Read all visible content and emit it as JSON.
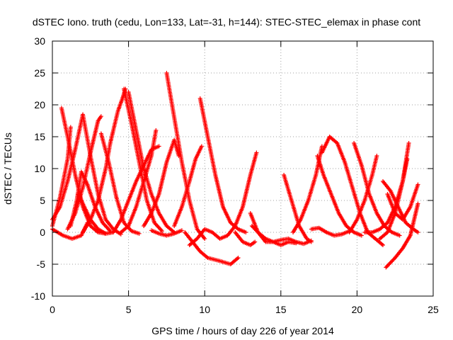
{
  "chart_data": {
    "type": "scatter",
    "title": "dSTEC Iono. truth (cedu, Lon=133, Lat=-31, h=144): STEC-STEC_elemax in phase cont",
    "xlabel": "GPS time / hours of day 226 of year 2014",
    "ylabel": "dSTEC  / TECUs",
    "xlim": [
      0,
      25
    ],
    "ylim": [
      -10,
      30
    ],
    "xticks": [
      0,
      5,
      10,
      15,
      20,
      25
    ],
    "yticks": [
      -10,
      -5,
      0,
      5,
      10,
      15,
      20,
      25,
      30
    ],
    "grid": true,
    "marker": "+",
    "color": "#ff0000",
    "series": [
      {
        "points": [
          [
            0.0,
            2
          ],
          [
            0.5,
            4
          ],
          [
            1.0,
            8
          ],
          [
            1.5,
            13
          ],
          [
            2.0,
            18.5
          ],
          [
            2.5,
            12
          ],
          [
            3.0,
            6
          ],
          [
            3.5,
            2
          ],
          [
            4.0,
            0.5
          ],
          [
            4.5,
            -0.3
          ]
        ]
      },
      {
        "points": [
          [
            0.6,
            19.5
          ],
          [
            1.0,
            15
          ],
          [
            1.5,
            9
          ],
          [
            2.0,
            4
          ],
          [
            2.5,
            1
          ],
          [
            3.0,
            0
          ],
          [
            3.5,
            -0.2
          ]
        ]
      },
      {
        "points": [
          [
            0.0,
            1
          ],
          [
            0.5,
            5.5
          ],
          [
            1.0,
            11.5
          ],
          [
            1.2,
            16.5
          ]
        ]
      },
      {
        "points": [
          [
            1.0,
            0.5
          ],
          [
            1.5,
            3
          ],
          [
            2.0,
            7
          ],
          [
            2.5,
            12.5
          ],
          [
            3.0,
            17.5
          ],
          [
            3.2,
            18.2
          ]
        ]
      },
      {
        "points": [
          [
            1.2,
            1
          ],
          [
            1.6,
            5
          ],
          [
            1.9,
            9.5
          ],
          [
            2.3,
            7.5
          ],
          [
            2.8,
            4
          ],
          [
            3.3,
            1.5
          ],
          [
            3.8,
            0.2
          ]
        ]
      },
      {
        "points": [
          [
            0.0,
            0.5
          ],
          [
            0.7,
            -0.5
          ],
          [
            1.3,
            -1
          ],
          [
            1.9,
            -0.5
          ],
          [
            2.3,
            1.5
          ]
        ]
      },
      {
        "points": [
          [
            1.7,
            6
          ],
          [
            2.5,
            2
          ],
          [
            3.0,
            0.5
          ],
          [
            3.5,
            -0.2
          ],
          [
            4.0,
            0
          ]
        ]
      },
      {
        "points": [
          [
            2.0,
            0
          ],
          [
            2.5,
            2
          ],
          [
            3.0,
            5
          ],
          [
            3.5,
            10
          ],
          [
            3.8,
            14
          ],
          [
            4.0,
            16
          ],
          [
            4.3,
            19
          ],
          [
            4.6,
            21
          ],
          [
            4.8,
            22.5
          ]
        ]
      },
      {
        "points": [
          [
            3.2,
            15.5
          ],
          [
            3.7,
            11
          ],
          [
            4.2,
            5.5
          ],
          [
            4.7,
            1.5
          ],
          [
            5.2,
            0.2
          ],
          [
            5.7,
            -0.2
          ]
        ]
      },
      {
        "points": [
          [
            4.0,
            0
          ],
          [
            4.5,
            2
          ],
          [
            5.0,
            5
          ],
          [
            5.5,
            8
          ],
          [
            6.0,
            10.5
          ],
          [
            6.5,
            13
          ],
          [
            7.0,
            13.5
          ]
        ]
      },
      {
        "points": [
          [
            4.7,
            22.5
          ],
          [
            5.2,
            17
          ],
          [
            5.7,
            11
          ],
          [
            6.2,
            5
          ],
          [
            6.7,
            1.5
          ],
          [
            7.2,
            0.2
          ]
        ]
      },
      {
        "points": [
          [
            5.0,
            22
          ],
          [
            5.5,
            16
          ],
          [
            6.0,
            10
          ],
          [
            6.5,
            6
          ],
          [
            7.0,
            3
          ],
          [
            7.5,
            1
          ],
          [
            8.0,
            0
          ]
        ]
      },
      {
        "points": [
          [
            4.5,
            0
          ],
          [
            5.0,
            1
          ],
          [
            5.5,
            4
          ],
          [
            6.0,
            8
          ],
          [
            6.5,
            12
          ],
          [
            6.8,
            16
          ]
        ]
      },
      {
        "points": [
          [
            6.0,
            1
          ],
          [
            6.5,
            3
          ],
          [
            7.0,
            6
          ],
          [
            7.5,
            11
          ],
          [
            8.0,
            14.5
          ],
          [
            8.3,
            12
          ]
        ]
      },
      {
        "points": [
          [
            7.5,
            25
          ],
          [
            8.0,
            18
          ],
          [
            8.5,
            11
          ],
          [
            9.0,
            5
          ],
          [
            9.5,
            0.5
          ],
          [
            10.0,
            -1
          ]
        ]
      },
      {
        "points": [
          [
            6.5,
            0.3
          ],
          [
            7.0,
            -0.2
          ],
          [
            7.5,
            -0.5
          ],
          [
            8.0,
            -0.2
          ],
          [
            8.5,
            0.3
          ]
        ]
      },
      {
        "points": [
          [
            8.7,
            0
          ],
          [
            9.2,
            -1.5
          ],
          [
            9.7,
            -3
          ],
          [
            10.2,
            -4
          ],
          [
            11.0,
            -4.5
          ],
          [
            11.7,
            -5
          ],
          [
            12.2,
            -4
          ]
        ]
      },
      {
        "points": [
          [
            8.0,
            1
          ],
          [
            8.5,
            4
          ],
          [
            9.0,
            8
          ],
          [
            9.4,
            11.5
          ],
          [
            9.8,
            13.5
          ]
        ]
      },
      {
        "points": [
          [
            9.7,
            21
          ],
          [
            10.2,
            15
          ],
          [
            10.7,
            9
          ],
          [
            11.2,
            4
          ],
          [
            11.7,
            1.5
          ],
          [
            12.2,
            0.5
          ],
          [
            12.7,
            0
          ]
        ]
      },
      {
        "points": [
          [
            9.0,
            -2
          ],
          [
            9.5,
            -1
          ],
          [
            10.0,
            0.5
          ],
          [
            10.5,
            0
          ],
          [
            11.0,
            -1
          ],
          [
            11.5,
            -0.5
          ],
          [
            12.0,
            1
          ],
          [
            12.5,
            4
          ],
          [
            13.0,
            9
          ],
          [
            13.4,
            12.5
          ]
        ]
      },
      {
        "points": [
          [
            12.0,
            0
          ],
          [
            12.5,
            -1.5
          ],
          [
            13.0,
            -2
          ],
          [
            13.3,
            -1.5
          ]
        ]
      },
      {
        "points": [
          [
            13.0,
            3
          ],
          [
            13.5,
            0
          ],
          [
            14.0,
            -1.5
          ],
          [
            14.5,
            -1.5
          ],
          [
            15.0,
            -1.2
          ],
          [
            15.5,
            -1
          ],
          [
            16.0,
            -1.5
          ],
          [
            16.5,
            -1.8
          ],
          [
            17.0,
            -1.3
          ]
        ]
      },
      {
        "points": [
          [
            13.1,
            1
          ],
          [
            13.5,
            0
          ],
          [
            14.0,
            -1
          ],
          [
            14.5,
            -1.5
          ],
          [
            15.0,
            -2
          ],
          [
            15.5,
            -1.5
          ],
          [
            16.0,
            -1.7
          ]
        ]
      },
      {
        "points": [
          [
            15.2,
            9
          ],
          [
            15.7,
            5
          ],
          [
            16.2,
            1
          ],
          [
            16.7,
            -1
          ],
          [
            17.0,
            -1.5
          ]
        ]
      },
      {
        "points": [
          [
            15.8,
            0
          ],
          [
            16.3,
            2
          ],
          [
            16.8,
            5
          ],
          [
            17.3,
            9
          ],
          [
            17.7,
            13.5
          ]
        ]
      },
      {
        "points": [
          [
            17.0,
            0.5
          ],
          [
            17.5,
            0.7
          ],
          [
            18.0,
            0
          ],
          [
            18.5,
            -0.5
          ],
          [
            19.0,
            -0.3
          ],
          [
            19.5,
            0.2
          ]
        ]
      },
      {
        "points": [
          [
            17.4,
            12
          ],
          [
            17.8,
            9
          ],
          [
            18.3,
            6
          ],
          [
            18.8,
            3
          ],
          [
            19.3,
            1
          ],
          [
            19.8,
            0
          ],
          [
            20.3,
            -0.5
          ]
        ]
      },
      {
        "points": [
          [
            17.7,
            12.5
          ],
          [
            18.2,
            15
          ],
          [
            18.7,
            14
          ],
          [
            19.2,
            11
          ],
          [
            19.7,
            7
          ],
          [
            20.2,
            3
          ],
          [
            20.7,
            0
          ],
          [
            21.2,
            -1
          ],
          [
            21.7,
            -2
          ]
        ]
      },
      {
        "points": [
          [
            19.8,
            14
          ],
          [
            20.3,
            10.5
          ],
          [
            20.8,
            6
          ],
          [
            21.3,
            3
          ],
          [
            21.8,
            1
          ],
          [
            22.3,
            0
          ],
          [
            22.8,
            -0.5
          ]
        ]
      },
      {
        "points": [
          [
            19.5,
            0
          ],
          [
            20.0,
            2
          ],
          [
            20.5,
            5
          ],
          [
            21.0,
            9
          ],
          [
            21.3,
            12
          ]
        ]
      },
      {
        "points": [
          [
            20.5,
            0
          ],
          [
            21.0,
            0
          ],
          [
            21.5,
            0.5
          ],
          [
            22.0,
            1.5
          ],
          [
            22.5,
            4
          ],
          [
            23.0,
            8
          ],
          [
            23.3,
            11.5
          ]
        ]
      },
      {
        "points": [
          [
            21.7,
            8
          ],
          [
            22.2,
            6.5
          ],
          [
            22.7,
            4
          ],
          [
            23.2,
            1.5
          ],
          [
            23.7,
            0.5
          ],
          [
            24.0,
            0
          ]
        ]
      },
      {
        "points": [
          [
            21.5,
            -1
          ],
          [
            22.0,
            0
          ],
          [
            22.5,
            3
          ],
          [
            23.0,
            8
          ],
          [
            23.4,
            14
          ]
        ]
      },
      {
        "points": [
          [
            22.0,
            6
          ],
          [
            22.5,
            3
          ],
          [
            23.0,
            2
          ],
          [
            23.5,
            4
          ],
          [
            24.0,
            7.5
          ]
        ]
      },
      {
        "points": [
          [
            21.9,
            -5.5
          ],
          [
            22.5,
            -4
          ],
          [
            23.0,
            -2.5
          ],
          [
            23.5,
            -0.5
          ],
          [
            24.0,
            4.5
          ]
        ]
      }
    ]
  }
}
